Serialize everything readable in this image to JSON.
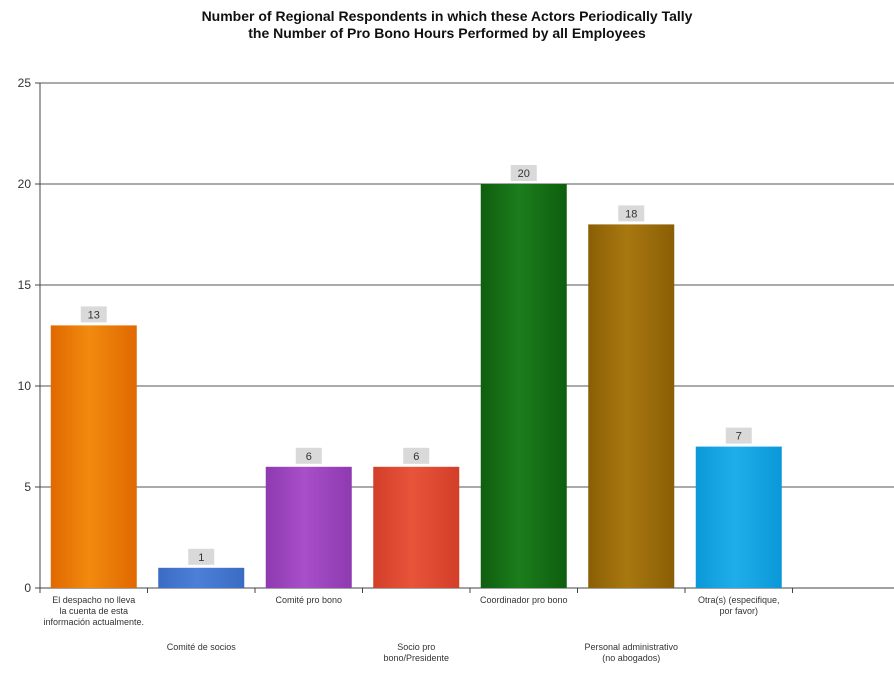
{
  "chart_data": {
    "type": "bar",
    "title": "Number of Regional Respondents in which these Actors Periodically Tally the Number of Pro Bono Hours Performed by all Employees",
    "title_lines": [
      "Number of Regional Respondents in which these Actors Periodically Tally",
      "the Number of Pro Bono Hours Performed by all Employees"
    ],
    "categories": [
      "El despacho no lleva la cuenta de esta información actualmente.",
      "Comité de socios",
      "Comité pro bono",
      "Socio pro bono/Presidente",
      "Coordinador pro bono",
      "Personal administrativo (no abogados)",
      "Otra(s) (especifique, por favor)"
    ],
    "category_lines": [
      [
        "El despacho no lleva",
        "la cuenta de esta",
        "información actualmente."
      ],
      [
        "Comité de socios"
      ],
      [
        "Comité pro bono"
      ],
      [
        "Socio pro",
        "bono/Presidente"
      ],
      [
        "Coordinador pro bono"
      ],
      [
        "Personal administrativo",
        "(no abogados)"
      ],
      [
        "Otra(s)  (especifique,",
        "por favor)"
      ]
    ],
    "values": [
      13,
      1,
      6,
      6,
      20,
      18,
      7
    ],
    "bar_colors": [
      "#F28A0F",
      "#4C7FD8",
      "#A84FC9",
      "#E8543A",
      "#1C7D1C",
      "#A87810",
      "#20AEEA"
    ],
    "bar_colors_dark": [
      "#E06800",
      "#3A6CC4",
      "#8E3AB0",
      "#D23E28",
      "#0E5E0E",
      "#8A5E05",
      "#0A98D8"
    ],
    "yticks": [
      0,
      5,
      10,
      15,
      20,
      25
    ],
    "ylim": [
      0,
      25
    ],
    "grid": true,
    "xlabel": "",
    "ylabel": ""
  }
}
